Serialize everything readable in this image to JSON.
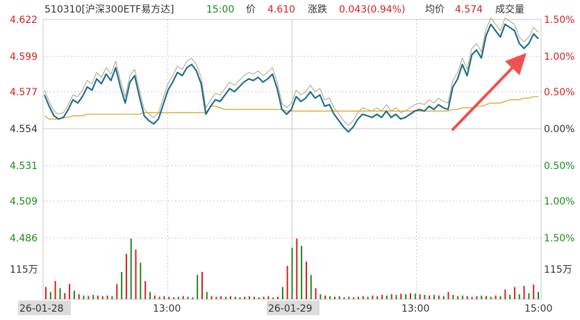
{
  "header": {
    "code": "510310[沪深300ETF易方达]",
    "time": "15:00",
    "price_label": "价",
    "price": "4.610",
    "change_label": "涨跌",
    "change": "0.043(0.94%)",
    "avg_label": "均价",
    "avg": "4.574",
    "volume_label": "成交量"
  },
  "colors": {
    "up": "#d42020",
    "down": "#1a8a1a",
    "price_line": "#1f6f8b",
    "ref_line": "#b0a080",
    "avg_line": "#d4a017",
    "arrow": "#f05050",
    "grid": "#c8c8c8",
    "text": "#333333"
  },
  "chart_data": {
    "type": "line",
    "y_left_ticks": [
      "4.622",
      "4.599",
      "4.577",
      "4.554",
      "4.531",
      "4.509",
      "4.486"
    ],
    "y_right_ticks": [
      "1.50%",
      "1.00%",
      "0.50%",
      "0.00%",
      "0.50%",
      "1.00%",
      "1.50%"
    ],
    "volume_label": "115万",
    "x_ticks": [
      "26-01-28",
      "13:00",
      "26-01-29",
      "13:00",
      "15:00"
    ],
    "ylim": [
      4.486,
      4.622
    ],
    "prev_close": 4.554,
    "series": [
      {
        "values": [
          4.575,
          4.568,
          4.562,
          4.56,
          4.561,
          4.566,
          4.572,
          4.57,
          4.574,
          4.58,
          4.578,
          4.585,
          4.582,
          4.588,
          4.584,
          4.592,
          4.58,
          4.57,
          4.583,
          4.587,
          4.574,
          4.562,
          4.559,
          4.557,
          4.56,
          4.569,
          4.578,
          4.583,
          4.589,
          4.587,
          4.592,
          4.594,
          4.59,
          4.582,
          4.563,
          4.568,
          4.572,
          4.571,
          4.575,
          4.579,
          4.577,
          4.58,
          4.583,
          4.585,
          4.584,
          4.586,
          4.583,
          4.585,
          4.588,
          4.579,
          4.566,
          4.563,
          4.566,
          4.574,
          4.571,
          4.573,
          4.577,
          4.573,
          4.575,
          4.568,
          4.569,
          4.563,
          4.559,
          4.555,
          4.552,
          4.555,
          4.56,
          4.563,
          4.562,
          4.561,
          4.563,
          4.561,
          4.565,
          4.561,
          4.563,
          4.56,
          4.561,
          4.563,
          4.565,
          4.566,
          4.565,
          4.568,
          4.566,
          4.569,
          4.567,
          4.566,
          4.58,
          4.585,
          4.594,
          4.587,
          4.6,
          4.603,
          4.598,
          4.612,
          4.619,
          4.615,
          4.611,
          4.619,
          4.617,
          4.615,
          4.607,
          4.604,
          4.607,
          4.613,
          4.61
        ]
      },
      {
        "values": [
          4.578,
          4.571,
          4.565,
          4.563,
          4.564,
          4.569,
          4.575,
          4.574,
          4.578,
          4.584,
          4.582,
          4.589,
          4.586,
          4.592,
          4.588,
          4.596,
          4.584,
          4.574,
          4.587,
          4.591,
          4.578,
          4.566,
          4.563,
          4.561,
          4.564,
          4.573,
          4.582,
          4.587,
          4.593,
          4.591,
          4.596,
          4.598,
          4.594,
          4.586,
          4.567,
          4.572,
          4.576,
          4.575,
          4.579,
          4.583,
          4.581,
          4.584,
          4.587,
          4.589,
          4.588,
          4.59,
          4.587,
          4.589,
          4.592,
          4.583,
          4.57,
          4.567,
          4.57,
          4.578,
          4.575,
          4.577,
          4.581,
          4.577,
          4.579,
          4.572,
          4.573,
          4.567,
          4.563,
          4.559,
          4.556,
          4.559,
          4.564,
          4.567,
          4.566,
          4.565,
          4.567,
          4.565,
          4.569,
          4.565,
          4.567,
          4.564,
          4.565,
          4.567,
          4.569,
          4.57,
          4.569,
          4.572,
          4.57,
          4.573,
          4.571,
          4.57,
          4.584,
          4.589,
          4.598,
          4.591,
          4.604,
          4.607,
          4.602,
          4.616,
          4.623,
          4.619,
          4.615,
          4.623,
          4.621,
          4.619,
          4.611,
          4.608,
          4.611,
          4.617,
          4.614
        ]
      },
      {
        "values": [
          4.562,
          4.56,
          4.56,
          4.56,
          4.561,
          4.561,
          4.562,
          4.562,
          4.562,
          4.563,
          4.563,
          4.563,
          4.563,
          4.563,
          4.563,
          4.563,
          4.563,
          4.563,
          4.563,
          4.563,
          4.563,
          4.564,
          4.564,
          4.564,
          4.564,
          4.564,
          4.564,
          4.564,
          4.564,
          4.564,
          4.564,
          4.564,
          4.564,
          4.564,
          4.564,
          4.568,
          4.568,
          4.567,
          4.566,
          4.566,
          4.566,
          4.566,
          4.566,
          4.566,
          4.566,
          4.566,
          4.566,
          4.566,
          4.566,
          4.566,
          4.566,
          4.565,
          4.565,
          4.565,
          4.565,
          4.565,
          4.565,
          4.565,
          4.565,
          4.565,
          4.565,
          4.565,
          4.565,
          4.565,
          4.565,
          4.565,
          4.565,
          4.565,
          4.565,
          4.565,
          4.565,
          4.565,
          4.565,
          4.565,
          4.565,
          4.565,
          4.565,
          4.565,
          4.565,
          4.565,
          4.565,
          4.565,
          4.565,
          4.565,
          4.565,
          4.565,
          4.566,
          4.566,
          4.567,
          4.567,
          4.567,
          4.568,
          4.568,
          4.569,
          4.57,
          4.57,
          4.57,
          4.571,
          4.572,
          4.572,
          4.572,
          4.573,
          4.573,
          4.574,
          4.574
        ]
      }
    ],
    "volume": [
      {
        "v": 0.2,
        "c": "up"
      },
      {
        "v": 0.12,
        "c": "down"
      },
      {
        "v": 0.3,
        "c": "up"
      },
      {
        "v": 0.18,
        "c": "down"
      },
      {
        "v": 0.1,
        "c": "up"
      },
      {
        "v": 0.25,
        "c": "up"
      },
      {
        "v": 0.14,
        "c": "down"
      },
      {
        "v": 0.08,
        "c": "up"
      },
      {
        "v": 0.06,
        "c": "down"
      },
      {
        "v": 0.05,
        "c": "up"
      },
      {
        "v": 0.07,
        "c": "down"
      },
      {
        "v": 0.06,
        "c": "up"
      },
      {
        "v": 0.05,
        "c": "down"
      },
      {
        "v": 0.06,
        "c": "up"
      },
      {
        "v": 0.05,
        "c": "down"
      },
      {
        "v": 0.25,
        "c": "up"
      },
      {
        "v": 0.45,
        "c": "down"
      },
      {
        "v": 0.75,
        "c": "up"
      },
      {
        "v": 1.0,
        "c": "down"
      },
      {
        "v": 0.82,
        "c": "up"
      },
      {
        "v": 0.6,
        "c": "down"
      },
      {
        "v": 0.3,
        "c": "up"
      },
      {
        "v": 0.12,
        "c": "down"
      },
      {
        "v": 0.06,
        "c": "up"
      },
      {
        "v": 0.04,
        "c": "down"
      },
      {
        "v": 0.05,
        "c": "up"
      },
      {
        "v": 0.04,
        "c": "down"
      },
      {
        "v": 0.03,
        "c": "up"
      },
      {
        "v": 0.04,
        "c": "down"
      },
      {
        "v": 0.05,
        "c": "up"
      },
      {
        "v": 0.04,
        "c": "down"
      },
      {
        "v": 0.03,
        "c": "up"
      },
      {
        "v": 0.4,
        "c": "down"
      },
      {
        "v": 0.45,
        "c": "up"
      },
      {
        "v": 0.12,
        "c": "down"
      },
      {
        "v": 0.05,
        "c": "up"
      },
      {
        "v": 0.04,
        "c": "down"
      },
      {
        "v": 0.05,
        "c": "up"
      },
      {
        "v": 0.04,
        "c": "down"
      },
      {
        "v": 0.05,
        "c": "up"
      },
      {
        "v": 0.04,
        "c": "down"
      },
      {
        "v": 0.03,
        "c": "up"
      },
      {
        "v": 0.04,
        "c": "down"
      },
      {
        "v": 0.05,
        "c": "up"
      },
      {
        "v": 0.04,
        "c": "down"
      },
      {
        "v": 0.03,
        "c": "up"
      },
      {
        "v": 0.04,
        "c": "down"
      },
      {
        "v": 0.05,
        "c": "up"
      },
      {
        "v": 0.03,
        "c": "down"
      },
      {
        "v": 0.04,
        "c": "up"
      },
      {
        "v": 0.2,
        "c": "down"
      },
      {
        "v": 0.55,
        "c": "up"
      },
      {
        "v": 0.85,
        "c": "down"
      },
      {
        "v": 1.0,
        "c": "up"
      },
      {
        "v": 0.88,
        "c": "down"
      },
      {
        "v": 0.62,
        "c": "up"
      },
      {
        "v": 0.4,
        "c": "down"
      },
      {
        "v": 0.18,
        "c": "up"
      },
      {
        "v": 0.08,
        "c": "down"
      },
      {
        "v": 0.06,
        "c": "up"
      },
      {
        "v": 0.05,
        "c": "down"
      },
      {
        "v": 0.04,
        "c": "up"
      },
      {
        "v": 0.05,
        "c": "down"
      },
      {
        "v": 0.03,
        "c": "up"
      },
      {
        "v": 0.04,
        "c": "down"
      },
      {
        "v": 0.03,
        "c": "up"
      },
      {
        "v": 0.04,
        "c": "down"
      },
      {
        "v": 0.05,
        "c": "up"
      },
      {
        "v": 0.04,
        "c": "down"
      },
      {
        "v": 0.06,
        "c": "up"
      },
      {
        "v": 0.05,
        "c": "down"
      },
      {
        "v": 0.07,
        "c": "up"
      },
      {
        "v": 0.06,
        "c": "down"
      },
      {
        "v": 0.08,
        "c": "up"
      },
      {
        "v": 0.07,
        "c": "down"
      },
      {
        "v": 0.09,
        "c": "up"
      },
      {
        "v": 0.08,
        "c": "down"
      },
      {
        "v": 0.1,
        "c": "up"
      },
      {
        "v": 0.09,
        "c": "down"
      },
      {
        "v": 0.08,
        "c": "up"
      },
      {
        "v": 0.07,
        "c": "down"
      },
      {
        "v": 0.06,
        "c": "up"
      },
      {
        "v": 0.07,
        "c": "down"
      },
      {
        "v": 0.06,
        "c": "up"
      },
      {
        "v": 0.05,
        "c": "down"
      },
      {
        "v": 0.12,
        "c": "up"
      },
      {
        "v": 0.07,
        "c": "down"
      },
      {
        "v": 0.05,
        "c": "up"
      },
      {
        "v": 0.06,
        "c": "down"
      },
      {
        "v": 0.05,
        "c": "up"
      },
      {
        "v": 0.04,
        "c": "down"
      },
      {
        "v": 0.05,
        "c": "up"
      },
      {
        "v": 0.06,
        "c": "down"
      },
      {
        "v": 0.05,
        "c": "up"
      },
      {
        "v": 0.04,
        "c": "down"
      },
      {
        "v": 0.06,
        "c": "up"
      },
      {
        "v": 0.05,
        "c": "down"
      },
      {
        "v": 0.16,
        "c": "up"
      },
      {
        "v": 0.07,
        "c": "down"
      },
      {
        "v": 0.2,
        "c": "up"
      },
      {
        "v": 0.08,
        "c": "down"
      },
      {
        "v": 0.22,
        "c": "up"
      },
      {
        "v": 0.1,
        "c": "down"
      },
      {
        "v": 0.24,
        "c": "up"
      },
      {
        "v": 0.12,
        "c": "down"
      }
    ]
  }
}
